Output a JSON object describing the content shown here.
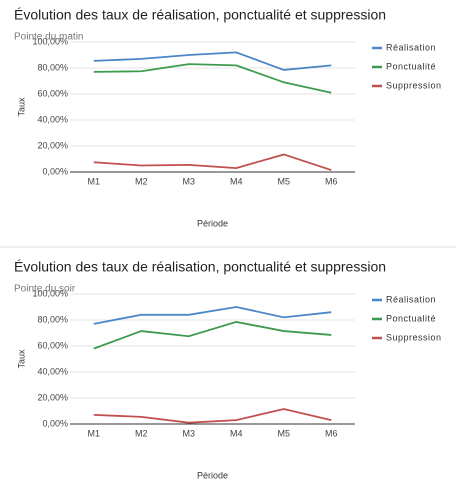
{
  "chart_data": [
    {
      "type": "line",
      "title": "Évolution des taux de réalisation, ponctualité et suppression",
      "subtitle": "Pointe du matin",
      "x_label": "Période",
      "y_label": "Taux",
      "categories": [
        "M1",
        "M2",
        "M3",
        "M4",
        "M5",
        "M6"
      ],
      "series": [
        {
          "name": "Réalisation",
          "color": "#4a86c8",
          "values": [
            85.5,
            87,
            90,
            92,
            78.5,
            82
          ]
        },
        {
          "name": "Ponctualité",
          "color": "#3d9a4e",
          "values": [
            77,
            77.5,
            83,
            82,
            69,
            61
          ]
        },
        {
          "name": "Suppression",
          "color": "#c0504d",
          "values": [
            7.5,
            5,
            5.5,
            3,
            13.5,
            1.5
          ]
        }
      ],
      "ylim": [
        0,
        100
      ],
      "yticks": [
        {
          "value": 0,
          "label": "0,00%"
        },
        {
          "value": 20,
          "label": "20,00%"
        },
        {
          "value": 40,
          "label": "40,00%"
        },
        {
          "value": 60,
          "label": "60,00%"
        },
        {
          "value": 80,
          "label": "80,00%"
        },
        {
          "value": 100,
          "label": "100,00%"
        }
      ],
      "legend": "right"
    },
    {
      "type": "line",
      "title": "Évolution des taux de réalisation, ponctualité et suppression",
      "subtitle": "Pointe du soir",
      "x_label": "Période",
      "y_label": "Taux",
      "categories": [
        "M1",
        "M2",
        "M3",
        "M4",
        "M5",
        "M6"
      ],
      "series": [
        {
          "name": "Réalisation",
          "color": "#4a86c8",
          "values": [
            77,
            84,
            84,
            90,
            82,
            86
          ]
        },
        {
          "name": "Ponctualité",
          "color": "#3d9a4e",
          "values": [
            58,
            71.5,
            67.5,
            78.5,
            71.5,
            68.5
          ]
        },
        {
          "name": "Suppression",
          "color": "#c0504d",
          "values": [
            7,
            5.5,
            1,
            3,
            11.5,
            3
          ]
        }
      ],
      "ylim": [
        0,
        100
      ],
      "yticks": [
        {
          "value": 0,
          "label": "0,00%"
        },
        {
          "value": 20,
          "label": "20,00%"
        },
        {
          "value": 40,
          "label": "40,00%"
        },
        {
          "value": 60,
          "label": "60,00%"
        },
        {
          "value": 80,
          "label": "80,00%"
        },
        {
          "value": 100,
          "label": "100,00%"
        }
      ],
      "legend": "right"
    }
  ]
}
